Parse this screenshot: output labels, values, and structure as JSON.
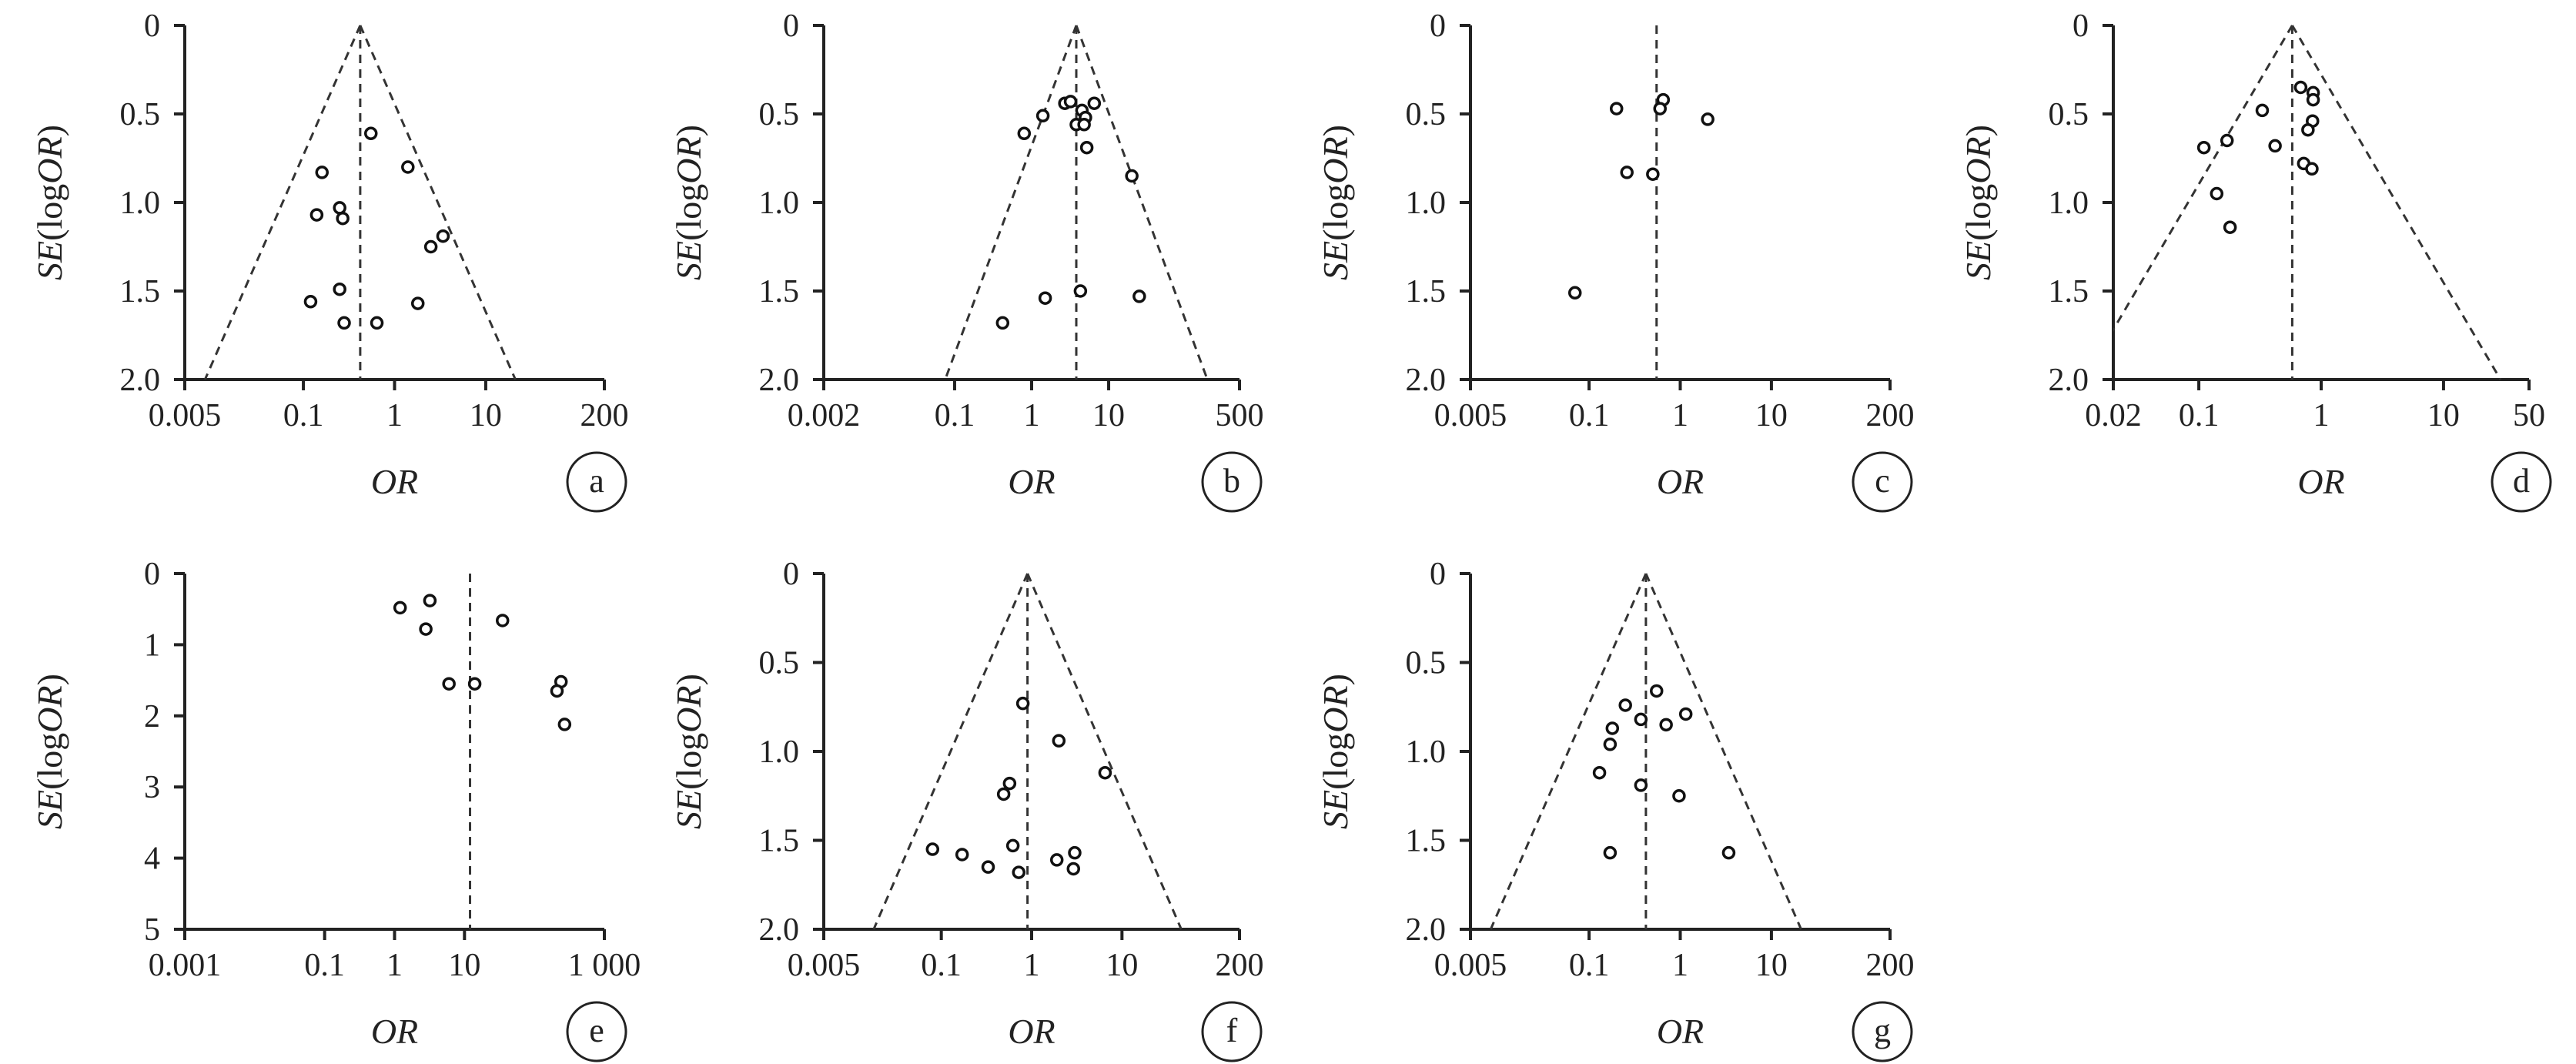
{
  "chart_data": [
    {
      "type": "scatter",
      "panel": "a",
      "xlabel": "OR",
      "ylabel_parts": [
        "SE",
        "(",
        "log",
        "OR",
        ")"
      ],
      "x_scale": "log",
      "xlim": [
        0.005,
        200
      ],
      "xticks": [
        0.005,
        0.1,
        1,
        10,
        200
      ],
      "xtick_labels": [
        "0.005",
        "0.1",
        "1",
        "10",
        "200"
      ],
      "ylim": [
        0,
        2.0
      ],
      "y_inverted": true,
      "yticks": [
        0,
        0.5,
        1.0,
        1.5,
        2.0
      ],
      "ytick_labels": [
        "0",
        "0.5",
        "1.0",
        "1.5",
        "2.0"
      ],
      "pooled_or": 0.42,
      "funnel": true,
      "points": [
        {
          "or": 0.55,
          "se": 0.61
        },
        {
          "or": 0.16,
          "se": 0.83
        },
        {
          "or": 1.4,
          "se": 0.8
        },
        {
          "or": 0.14,
          "se": 1.07
        },
        {
          "or": 0.25,
          "se": 1.03
        },
        {
          "or": 0.27,
          "se": 1.09
        },
        {
          "or": 3.4,
          "se": 1.19
        },
        {
          "or": 2.5,
          "se": 1.25
        },
        {
          "or": 0.12,
          "se": 1.56
        },
        {
          "or": 0.25,
          "se": 1.49
        },
        {
          "or": 1.8,
          "se": 1.57
        },
        {
          "or": 0.28,
          "se": 1.68
        },
        {
          "or": 0.64,
          "se": 1.68
        }
      ]
    },
    {
      "type": "scatter",
      "panel": "b",
      "xlabel": "OR",
      "ylabel_parts": [
        "SE",
        "(",
        "log",
        "OR",
        ")"
      ],
      "x_scale": "log",
      "xlim": [
        0.002,
        500
      ],
      "xticks": [
        0.002,
        0.1,
        1,
        10,
        500
      ],
      "xtick_labels": [
        "0.002",
        "0.1",
        "1",
        "10",
        "500"
      ],
      "ylim": [
        0,
        2.0
      ],
      "y_inverted": true,
      "yticks": [
        0,
        0.5,
        1.0,
        1.5,
        2.0
      ],
      "ytick_labels": [
        "0",
        "0.5",
        "1.0",
        "1.5",
        "2.0"
      ],
      "pooled_or": 3.8,
      "funnel": true,
      "points": [
        {
          "or": 0.8,
          "se": 0.61
        },
        {
          "or": 1.4,
          "se": 0.51
        },
        {
          "or": 2.7,
          "se": 0.44
        },
        {
          "or": 3.2,
          "se": 0.43
        },
        {
          "or": 4.5,
          "se": 0.48
        },
        {
          "or": 6.5,
          "se": 0.44
        },
        {
          "or": 3.8,
          "se": 0.56
        },
        {
          "or": 5.0,
          "se": 0.52
        },
        {
          "or": 4.8,
          "se": 0.56
        },
        {
          "or": 5.2,
          "se": 0.69
        },
        {
          "or": 20,
          "se": 0.85
        },
        {
          "or": 1.5,
          "se": 1.54
        },
        {
          "or": 4.3,
          "se": 1.5
        },
        {
          "or": 25,
          "se": 1.53
        },
        {
          "or": 0.42,
          "se": 1.68
        }
      ]
    },
    {
      "type": "scatter",
      "panel": "c",
      "xlabel": "OR",
      "ylabel_parts": [
        "SE",
        "(",
        "log",
        "OR",
        ")"
      ],
      "x_scale": "log",
      "xlim": [
        0.005,
        200
      ],
      "xticks": [
        0.005,
        0.1,
        1,
        10,
        200
      ],
      "xtick_labels": [
        "0.005",
        "0.1",
        "1",
        "10",
        "200"
      ],
      "ylim": [
        0,
        2.0
      ],
      "y_inverted": true,
      "yticks": [
        0,
        0.5,
        1.0,
        1.5,
        2.0
      ],
      "ytick_labels": [
        "0",
        "0.5",
        "1.0",
        "1.5",
        "2.0"
      ],
      "pooled_or": 0.55,
      "funnel": false,
      "points": [
        {
          "or": 0.65,
          "se": 0.42
        },
        {
          "or": 0.6,
          "se": 0.47
        },
        {
          "or": 0.2,
          "se": 0.47
        },
        {
          "or": 2.0,
          "se": 0.53
        },
        {
          "or": 0.26,
          "se": 0.83
        },
        {
          "or": 0.5,
          "se": 0.84
        },
        {
          "or": 0.07,
          "se": 1.51
        }
      ]
    },
    {
      "type": "scatter",
      "panel": "d",
      "xlabel": "OR",
      "ylabel_parts": [
        "SE",
        "(",
        "log",
        "OR",
        ")"
      ],
      "x_scale": "log",
      "xlim": [
        0.02,
        50
      ],
      "xticks": [
        0.02,
        0.1,
        1,
        10,
        50
      ],
      "xtick_labels": [
        "0.02",
        "0.1",
        "1",
        "10",
        "50"
      ],
      "ylim": [
        0,
        2.0
      ],
      "y_inverted": true,
      "yticks": [
        0,
        0.5,
        1.0,
        1.5,
        2.0
      ],
      "ytick_labels": [
        "0",
        "0.5",
        "1.0",
        "1.5",
        "2.0"
      ],
      "pooled_or": 0.58,
      "funnel": true,
      "points": [
        {
          "or": 0.68,
          "se": 0.35
        },
        {
          "or": 0.86,
          "se": 0.38
        },
        {
          "or": 0.86,
          "se": 0.42
        },
        {
          "or": 0.33,
          "se": 0.48
        },
        {
          "or": 0.85,
          "se": 0.54
        },
        {
          "or": 0.78,
          "se": 0.59
        },
        {
          "or": 0.17,
          "se": 0.65
        },
        {
          "or": 0.42,
          "se": 0.68
        },
        {
          "or": 0.11,
          "se": 0.69
        },
        {
          "or": 0.72,
          "se": 0.78
        },
        {
          "or": 0.84,
          "se": 0.81
        },
        {
          "or": 0.14,
          "se": 0.95
        },
        {
          "or": 0.18,
          "se": 1.14
        }
      ]
    },
    {
      "type": "scatter",
      "panel": "e",
      "xlabel": "OR",
      "ylabel_parts": [
        "SE",
        "(",
        "log",
        "OR",
        ")"
      ],
      "x_scale": "log",
      "xlim": [
        0.001,
        1000
      ],
      "xticks": [
        0.001,
        0.1,
        1,
        10,
        1000
      ],
      "xtick_labels": [
        "0.001",
        "0.1",
        "1",
        "10",
        "1 000"
      ],
      "ylim": [
        0,
        5
      ],
      "y_inverted": true,
      "yticks": [
        0,
        1,
        2,
        3,
        4,
        5
      ],
      "ytick_labels": [
        "0",
        "1",
        "2",
        "3",
        "4",
        "5"
      ],
      "pooled_or": 12,
      "funnel": false,
      "points": [
        {
          "or": 1.2,
          "se": 0.48
        },
        {
          "or": 3.2,
          "se": 0.38
        },
        {
          "or": 2.8,
          "se": 0.78
        },
        {
          "or": 35,
          "se": 0.66
        },
        {
          "or": 6,
          "se": 1.55
        },
        {
          "or": 14,
          "se": 1.55
        },
        {
          "or": 240,
          "se": 1.52
        },
        {
          "or": 210,
          "se": 1.65
        },
        {
          "or": 270,
          "se": 2.12
        }
      ]
    },
    {
      "type": "scatter",
      "panel": "f",
      "xlabel": "OR",
      "ylabel_parts": [
        "SE",
        "(",
        "log",
        "OR",
        ")"
      ],
      "x_scale": "log",
      "xlim": [
        0.005,
        200
      ],
      "xticks": [
        0.005,
        0.1,
        1,
        10,
        200
      ],
      "xtick_labels": [
        "0.005",
        "0.1",
        "1",
        "10",
        "200"
      ],
      "ylim": [
        0,
        2.0
      ],
      "y_inverted": true,
      "yticks": [
        0,
        0.5,
        1.0,
        1.5,
        2.0
      ],
      "ytick_labels": [
        "0",
        "0.5",
        "1.0",
        "1.5",
        "2.0"
      ],
      "pooled_or": 0.9,
      "funnel": true,
      "points": [
        {
          "or": 0.8,
          "se": 0.73
        },
        {
          "or": 2.0,
          "se": 0.94
        },
        {
          "or": 6.5,
          "se": 1.12
        },
        {
          "or": 0.57,
          "se": 1.18
        },
        {
          "or": 0.49,
          "se": 1.24
        },
        {
          "or": 0.08,
          "se": 1.55
        },
        {
          "or": 0.17,
          "se": 1.58
        },
        {
          "or": 0.33,
          "se": 1.65
        },
        {
          "or": 0.62,
          "se": 1.53
        },
        {
          "or": 0.72,
          "se": 1.68
        },
        {
          "or": 1.9,
          "se": 1.61
        },
        {
          "or": 3.0,
          "se": 1.57
        },
        {
          "or": 2.9,
          "se": 1.66
        }
      ]
    },
    {
      "type": "scatter",
      "panel": "g",
      "xlabel": "OR",
      "ylabel_parts": [
        "SE",
        "(",
        "log",
        "OR",
        ")"
      ],
      "x_scale": "log",
      "xlim": [
        0.005,
        200
      ],
      "xticks": [
        0.005,
        0.1,
        1,
        10,
        200
      ],
      "xtick_labels": [
        "0.005",
        "0.1",
        "1",
        "10",
        "200"
      ],
      "ylim": [
        0,
        2.0
      ],
      "y_inverted": true,
      "yticks": [
        0,
        0.5,
        1.0,
        1.5,
        2.0
      ],
      "ytick_labels": [
        "0",
        "0.5",
        "1.0",
        "1.5",
        "2.0"
      ],
      "pooled_or": 0.42,
      "funnel": true,
      "points": [
        {
          "or": 0.55,
          "se": 0.66
        },
        {
          "or": 0.25,
          "se": 0.74
        },
        {
          "or": 1.15,
          "se": 0.79
        },
        {
          "or": 0.37,
          "se": 0.82
        },
        {
          "or": 0.18,
          "se": 0.87
        },
        {
          "or": 0.7,
          "se": 0.85
        },
        {
          "or": 0.17,
          "se": 0.96
        },
        {
          "or": 0.13,
          "se": 1.12
        },
        {
          "or": 0.37,
          "se": 1.19
        },
        {
          "or": 0.97,
          "se": 1.25
        },
        {
          "or": 0.17,
          "se": 1.57
        },
        {
          "or": 3.4,
          "se": 1.57
        }
      ]
    }
  ]
}
